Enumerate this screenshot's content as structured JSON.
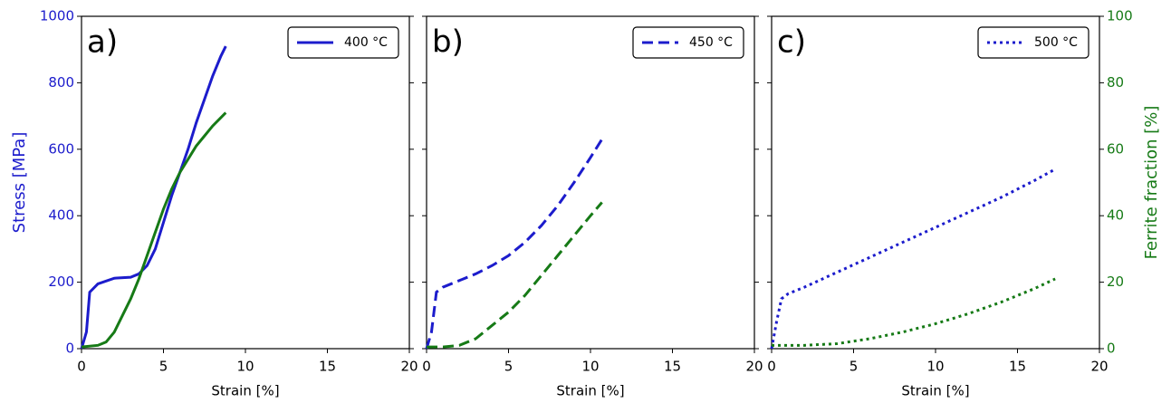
{
  "chart_data": [
    {
      "type": "line",
      "annotation": "a)",
      "xlabel": "Strain [%]",
      "ylabel": "Stress [MPa]",
      "xlim": [
        0,
        20
      ],
      "xticks": [
        0,
        5,
        10,
        15,
        20
      ],
      "ylim": [
        0,
        1000
      ],
      "yticks": [
        0,
        200,
        400,
        600,
        800,
        1000
      ],
      "y2lim": [
        0,
        100
      ],
      "y2ticks": [
        0,
        20,
        40,
        60,
        80,
        100
      ],
      "series": [
        {
          "name": "400 °C",
          "color": "#1c1ccc",
          "dash": "solid",
          "x": [
            0,
            0.3,
            0.5,
            1,
            2,
            3,
            3.5,
            4,
            4.5,
            5,
            5.5,
            6,
            6.5,
            7,
            7.5,
            8,
            8.5,
            8.8
          ],
          "values": [
            0,
            50,
            170,
            195,
            212,
            215,
            225,
            250,
            300,
            380,
            460,
            530,
            600,
            680,
            750,
            820,
            880,
            910
          ]
        },
        {
          "color": "#167a16",
          "dash": "solid",
          "axis": "y2",
          "x": [
            0,
            1,
            1.5,
            2,
            2.5,
            3,
            3.5,
            4,
            4.5,
            5,
            5.5,
            6,
            6.5,
            7,
            7.5,
            8,
            8.5,
            8.8
          ],
          "values": [
            0.5,
            1,
            2,
            5,
            10,
            15,
            21,
            28,
            35,
            42,
            48,
            53,
            57,
            61,
            64,
            67,
            69.5,
            71
          ]
        }
      ]
    },
    {
      "type": "line",
      "annotation": "b)",
      "xlabel": "Strain [%]",
      "xlim": [
        0,
        20
      ],
      "xticks": [
        0,
        5,
        10,
        15,
        20
      ],
      "ylim": [
        0,
        1000
      ],
      "yticks": [
        0,
        200,
        400,
        600,
        800,
        1000
      ],
      "y2lim": [
        0,
        100
      ],
      "y2ticks": [
        0,
        20,
        40,
        60,
        80,
        100
      ],
      "series": [
        {
          "name": "450 °C",
          "color": "#1c1ccc",
          "dash": "dashed",
          "x": [
            0,
            0.3,
            0.6,
            1,
            2,
            3,
            4,
            5,
            6,
            7,
            8,
            9,
            10,
            10.7
          ],
          "values": [
            0,
            50,
            170,
            185,
            205,
            225,
            250,
            280,
            320,
            370,
            430,
            500,
            575,
            630
          ]
        },
        {
          "color": "#167a16",
          "dash": "dashed",
          "axis": "y2",
          "x": [
            0,
            1,
            2,
            3,
            4,
            5,
            6,
            7,
            8,
            9,
            10,
            10.7
          ],
          "values": [
            0.5,
            0.5,
            1,
            3,
            7,
            11,
            16,
            22,
            28,
            34,
            40,
            44
          ]
        }
      ]
    },
    {
      "type": "line",
      "annotation": "c)",
      "xlabel": "Strain [%]",
      "y2label": "Ferrite fraction [%]",
      "xlim": [
        0,
        20
      ],
      "xticks": [
        0,
        5,
        10,
        15,
        20
      ],
      "ylim": [
        0,
        1000
      ],
      "yticks": [
        0,
        200,
        400,
        600,
        800,
        1000
      ],
      "y2lim": [
        0,
        100
      ],
      "y2ticks": [
        0,
        20,
        40,
        60,
        80,
        100
      ],
      "series": [
        {
          "name": "500 °C",
          "color": "#1c1ccc",
          "dash": "dotted",
          "x": [
            0,
            0.3,
            0.6,
            1,
            2,
            4,
            6,
            8,
            10,
            12,
            14,
            16,
            17.3
          ],
          "values": [
            0,
            80,
            150,
            165,
            185,
            230,
            275,
            320,
            365,
            410,
            455,
            505,
            540
          ]
        },
        {
          "color": "#167a16",
          "dash": "dotted",
          "axis": "y2",
          "x": [
            0,
            2,
            4,
            6,
            8,
            10,
            12,
            14,
            16,
            17.3
          ],
          "values": [
            1,
            1,
            1.5,
            3,
            5,
            7.5,
            10.5,
            14,
            18,
            21
          ]
        }
      ]
    }
  ]
}
